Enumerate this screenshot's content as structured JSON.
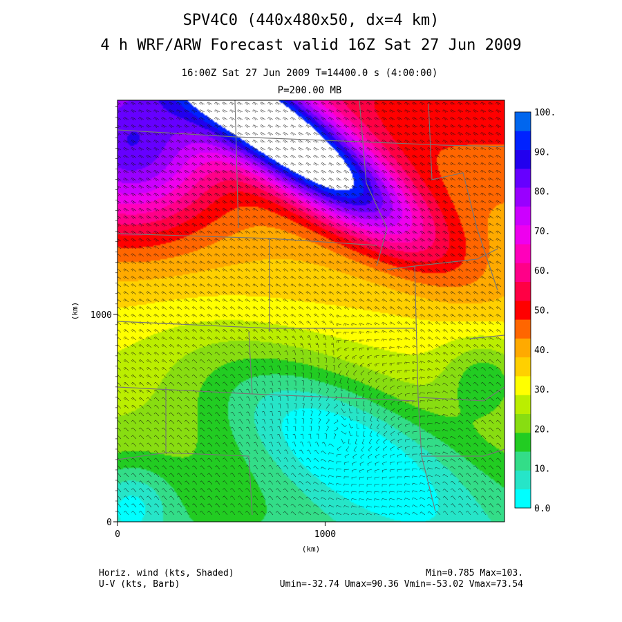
{
  "header": {
    "title_line1": "SPV4C0 (440x480x50, dx=4 km)",
    "title_line2": "4 h WRF/ARW Forecast valid 16Z Sat 27 Jun 2009",
    "time_line": "16:00Z Sat 27 Jun 2009    T=14400.0 s (4:00:00)",
    "level_line": "P=200.00 MB"
  },
  "footer": {
    "left_line1": "Horiz. wind (kts, Shaded)",
    "left_line2": "U-V (kts, Barb)",
    "right_line1": "Min=0.785 Max=103.",
    "right_line2": "Umin=-32.74 Umax=90.36 Vmin=-53.02 Vmax=73.54"
  },
  "chart_data": {
    "type": "heatmap",
    "xlabel": "(km)",
    "ylabel": "(km)",
    "xlim": [
      0,
      1864
    ],
    "ylim": [
      0,
      2032
    ],
    "x_ticks": [
      {
        "value": 0,
        "label": "0"
      },
      {
        "value": 1000,
        "label": "1000"
      }
    ],
    "y_ticks": [
      {
        "value": 0,
        "label": "0"
      },
      {
        "value": 1000,
        "label": "1000"
      }
    ],
    "colorbar": {
      "unit": "kts",
      "levels": [
        0,
        5,
        10,
        15,
        20,
        25,
        30,
        35,
        40,
        45,
        50,
        55,
        60,
        65,
        70,
        75,
        80,
        85,
        90,
        95,
        100
      ],
      "labels": [
        "0.0",
        "10.",
        "20.",
        "30.",
        "40.",
        "50.",
        "60.",
        "70.",
        "80.",
        "90.",
        "100."
      ],
      "colors": [
        "#00ffff",
        "#26e5c8",
        "#33dd88",
        "#22cc22",
        "#88dd11",
        "#bbee00",
        "#ffff00",
        "#ffd000",
        "#ffaa00",
        "#ff6600",
        "#ff0000",
        "#ff0044",
        "#ff0088",
        "#ff00bb",
        "#ee00ee",
        "#cc00ff",
        "#9900ff",
        "#6600ff",
        "#2200ee",
        "#0022ff",
        "#0066ee"
      ],
      "over_color": "#ffffff"
    },
    "field_features": [
      {
        "name": "jet_max",
        "x": 820,
        "y": 1840,
        "speed": 103
      },
      {
        "name": "low_min",
        "x": 1060,
        "y": 390,
        "speed": 0.785
      }
    ]
  }
}
